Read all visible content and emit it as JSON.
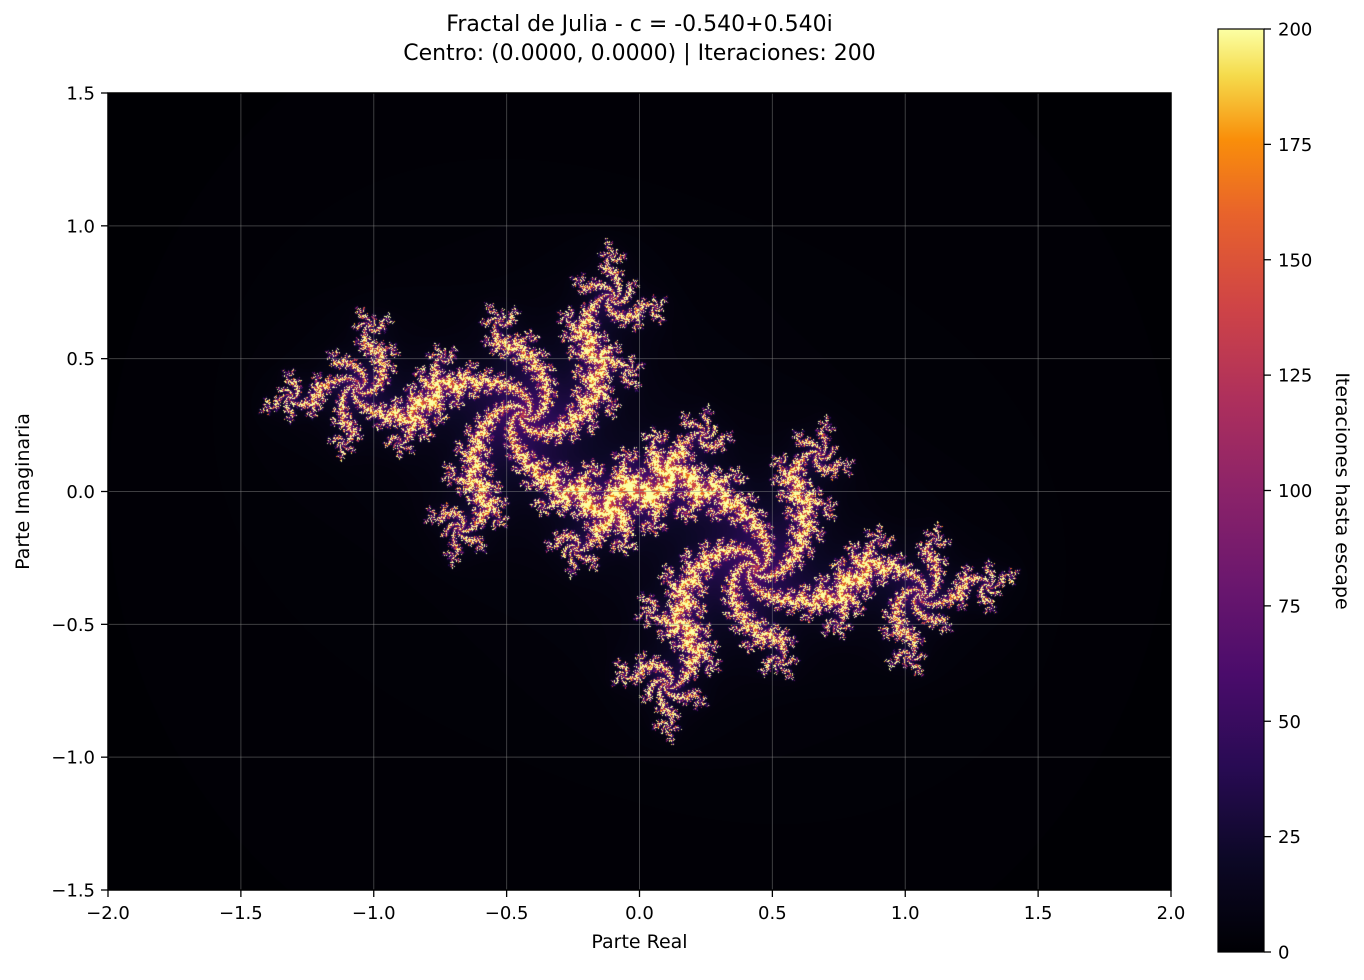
{
  "chart_data": {
    "type": "heatmap",
    "title_line1": "Fractal de Julia - c = -0.540+0.540i",
    "title_line2": "Centro: (0.0000, 0.0000) | Iteraciones: 200",
    "xlabel": "Parte Real",
    "ylabel": "Parte Imaginaria",
    "xlim": [
      -2.0,
      2.0
    ],
    "ylim": [
      -1.5,
      1.5
    ],
    "x_ticks": [
      -2.0,
      -1.5,
      -1.0,
      -0.5,
      0.0,
      0.5,
      1.0,
      1.5,
      2.0
    ],
    "x_tick_labels": [
      "−2.0",
      "−1.5",
      "−1.0",
      "−0.5",
      "0.0",
      "0.5",
      "1.0",
      "1.5",
      "2.0"
    ],
    "y_ticks": [
      -1.5,
      -1.0,
      -0.5,
      0.0,
      0.5,
      1.0,
      1.5
    ],
    "y_tick_labels": [
      "−1.5",
      "−1.0",
      "−0.5",
      "0.0",
      "0.5",
      "1.0",
      "1.5"
    ],
    "grid": true,
    "colormap": "inferno",
    "julia_c": [
      -0.54,
      0.54
    ],
    "center": [
      0.0,
      0.0
    ],
    "max_iterations": 200,
    "colorbar": {
      "label": "Iteraciones hasta escape",
      "range": [
        0,
        200
      ],
      "ticks": [
        0,
        25,
        50,
        75,
        100,
        125,
        150,
        175,
        200
      ],
      "tick_labels": [
        "0",
        "25",
        "50",
        "75",
        "100",
        "125",
        "150",
        "175",
        "200"
      ]
    }
  }
}
